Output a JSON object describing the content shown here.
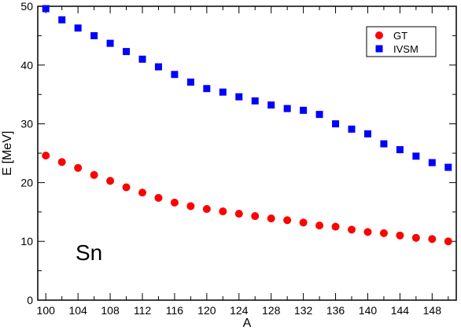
{
  "chart_data": {
    "type": "scatter",
    "title": "",
    "xlabel": "A",
    "ylabel": "E [MeV]",
    "xlim": [
      99,
      151
    ],
    "ylim": [
      0,
      50
    ],
    "x_ticks": [
      100,
      104,
      108,
      112,
      116,
      120,
      124,
      128,
      132,
      136,
      140,
      144,
      148
    ],
    "x_tick_labels": [
      "100",
      "104",
      "108",
      "112",
      "116",
      "120",
      "124",
      "128",
      "132",
      "136",
      "140",
      "144",
      "148"
    ],
    "y_ticks": [
      0,
      10,
      20,
      30,
      40,
      50
    ],
    "y_tick_labels": [
      "0",
      "10",
      "20",
      "30",
      "40",
      "50"
    ],
    "grid": false,
    "legend_position": "top-right",
    "annotation": "Sn",
    "series": [
      {
        "name": "GT",
        "marker": "circle",
        "color": "#ff0000",
        "x": [
          100,
          102,
          104,
          106,
          108,
          110,
          112,
          114,
          116,
          118,
          120,
          122,
          124,
          126,
          128,
          130,
          132,
          134,
          136,
          138,
          140,
          142,
          144,
          146,
          148,
          150
        ],
        "y": [
          24.6,
          23.5,
          22.5,
          21.3,
          20.3,
          19.2,
          18.3,
          17.4,
          16.6,
          16.0,
          15.5,
          15.1,
          14.7,
          14.3,
          13.9,
          13.6,
          13.2,
          12.7,
          12.5,
          12.0,
          11.6,
          11.4,
          11.0,
          10.6,
          10.4,
          10.0
        ]
      },
      {
        "name": "IVSM",
        "marker": "square",
        "color": "#0000ff",
        "x": [
          100,
          102,
          104,
          106,
          108,
          110,
          112,
          114,
          116,
          118,
          120,
          122,
          124,
          126,
          128,
          130,
          132,
          134,
          136,
          138,
          140,
          142,
          144,
          146,
          148,
          150
        ],
        "y": [
          49.6,
          47.7,
          46.3,
          45.0,
          43.7,
          42.3,
          41.0,
          39.7,
          38.4,
          37.1,
          36.0,
          35.4,
          34.6,
          33.9,
          33.2,
          32.6,
          32.3,
          31.6,
          30.0,
          29.1,
          28.3,
          26.6,
          25.6,
          24.5,
          23.4,
          22.6
        ]
      }
    ]
  }
}
